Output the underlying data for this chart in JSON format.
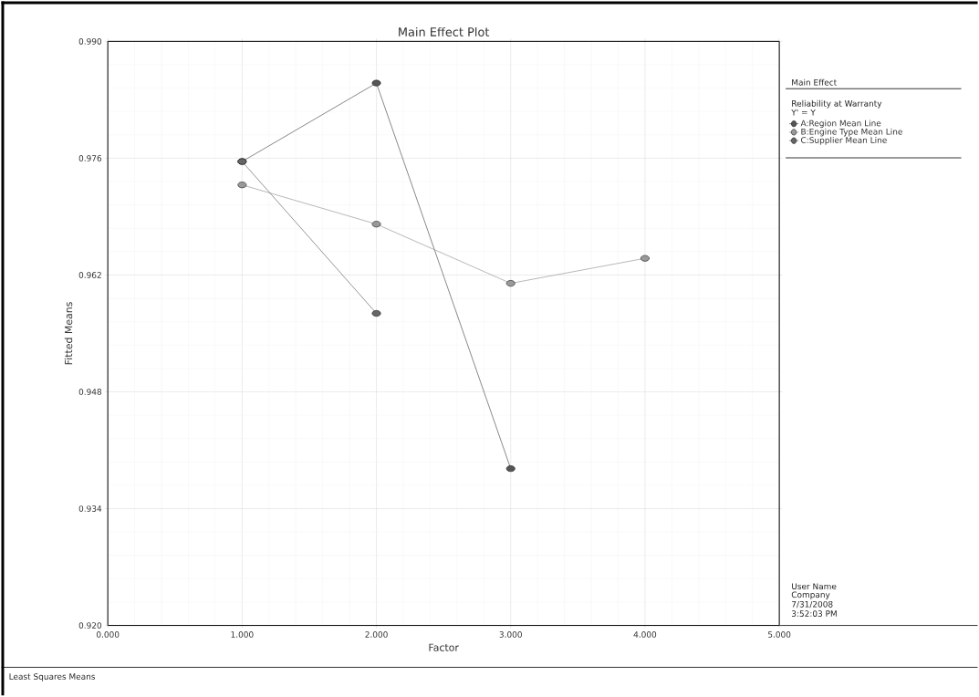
{
  "chart_data": {
    "type": "line",
    "title": "Main Effect Plot",
    "xlabel": "Factor",
    "ylabel": "Fitted Means",
    "legend_title": "Reliability at Warranty",
    "xlim": [
      0,
      5
    ],
    "ylim": [
      0.92,
      0.99
    ],
    "xticks": [
      {
        "value": 0,
        "label": "0.000"
      },
      {
        "value": 1,
        "label": "1.000"
      },
      {
        "value": 2,
        "label": "2.000"
      },
      {
        "value": 3,
        "label": "3.000"
      },
      {
        "value": 4,
        "label": "4.000"
      },
      {
        "value": 5,
        "label": "5.000"
      }
    ],
    "yticks": [
      {
        "value": 0.92,
        "label": "0.920"
      },
      {
        "value": 0.934,
        "label": "0.934"
      },
      {
        "value": 0.948,
        "label": "0.948"
      },
      {
        "value": 0.962,
        "label": "0.962"
      },
      {
        "value": 0.976,
        "label": "0.976"
      },
      {
        "value": 0.99,
        "label": "0.990"
      }
    ],
    "grid": true,
    "legend": "right",
    "marker": "circle",
    "line_style": "solid",
    "series": [
      {
        "name": "A:Region Mean Line",
        "color": "#555555",
        "x": [
          1,
          2,
          3
        ],
        "values": [
          0.9756,
          0.985,
          0.9388
        ]
      },
      {
        "name": "B:Engine Type Mean Line",
        "color": "#999999",
        "x": [
          1,
          2,
          3,
          4
        ],
        "values": [
          0.9728,
          0.9681,
          0.961,
          0.964
        ]
      },
      {
        "name": "C:Supplier Mean Line",
        "color": "#666666",
        "x": [
          1,
          2
        ],
        "values": [
          0.9756,
          0.9574
        ]
      }
    ],
    "annotations": [
      "Main Effect",
      "Y' = Y",
      "User Name",
      "Company",
      "7/31/2008",
      "3:52:03 PM",
      "Least Squares Means"
    ]
  }
}
